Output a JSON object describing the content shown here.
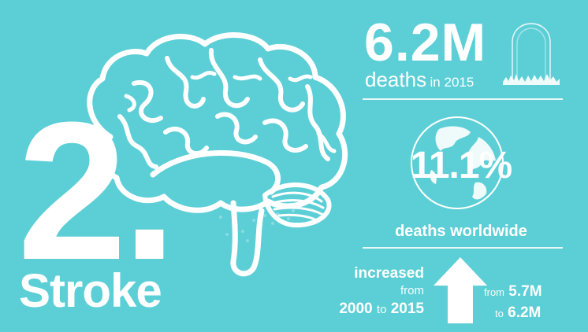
{
  "rank": "2.",
  "cause": "Stroke",
  "deaths": {
    "count": "6.2M",
    "label": "deaths",
    "year_text": "in 2015"
  },
  "share": {
    "percent": "11.1%",
    "label": "deaths worldwide"
  },
  "trend": {
    "word": "increased",
    "from_word": "from",
    "period_start": "2000",
    "to_word": "to",
    "period_end": "2015",
    "range_from_word": "from",
    "range_from_value": "5.7M",
    "range_to_word": "to",
    "range_to_value": "6.2M"
  },
  "colors": {
    "background": "#5ccfd6",
    "foreground": "#ffffff"
  },
  "icons": [
    "brain-illustration",
    "tombstone-icon",
    "globe-icon",
    "up-arrow-icon"
  ]
}
